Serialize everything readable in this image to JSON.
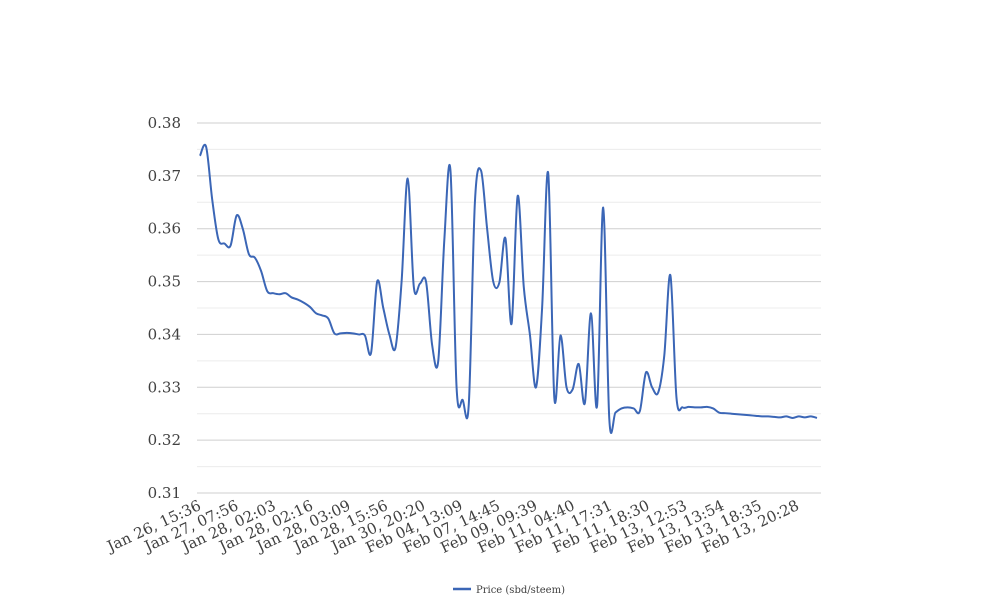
{
  "chart_data": {
    "type": "line",
    "title": "",
    "xlabel": "",
    "ylabel": "",
    "ylim": [
      0.31,
      0.38
    ],
    "yticks": [
      "0.31",
      "0.32",
      "0.33",
      "0.34",
      "0.35",
      "0.36",
      "0.37",
      "0.38"
    ],
    "minor_grid": true,
    "legend_position": "bottom",
    "x_tick_labels": [
      "Jan 26, 15:36",
      "Jan 27, 07:56",
      "Jan 28, 02:03",
      "Jan 28, 02:16",
      "Jan 28, 03:09",
      "Jan 28, 15:56",
      "Jan 30, 20:20",
      "Feb 04, 13:09",
      "Feb 07, 14:45",
      "Feb 09, 09:39",
      "Feb 11, 04:40",
      "Feb 11, 17:31",
      "Feb 11, 18:30",
      "Feb 13, 12:53",
      "Feb 13, 13:54",
      "Feb 13, 18:35",
      "Feb 13, 20:28"
    ],
    "series": [
      {
        "name": "Price (sbd/steem)",
        "color": "#3b66b6",
        "values": [
          0.3738,
          0.3755,
          0.3655,
          0.358,
          0.3572,
          0.3568,
          0.3625,
          0.36,
          0.3552,
          0.3545,
          0.352,
          0.3482,
          0.3478,
          0.3476,
          0.3478,
          0.347,
          0.3466,
          0.346,
          0.3452,
          0.344,
          0.3436,
          0.343,
          0.3402,
          0.3402,
          0.3403,
          0.3402,
          0.34,
          0.3398,
          0.3365,
          0.35,
          0.345,
          0.34,
          0.3375,
          0.35,
          0.3695,
          0.349,
          0.3496,
          0.35,
          0.338,
          0.335,
          0.358,
          0.371,
          0.33,
          0.3276,
          0.3268,
          0.365,
          0.371,
          0.36,
          0.35,
          0.3498,
          0.3582,
          0.342,
          0.3662,
          0.349,
          0.34,
          0.33,
          0.345,
          0.3705,
          0.328,
          0.3398,
          0.33,
          0.3296,
          0.3344,
          0.327,
          0.344,
          0.3265,
          0.364,
          0.324,
          0.3252,
          0.326,
          0.3262,
          0.326,
          0.3255,
          0.3328,
          0.33,
          0.329,
          0.336,
          0.3512,
          0.328,
          0.3262,
          0.3263,
          0.3262,
          0.3262,
          0.3263,
          0.326,
          0.3252,
          0.3251,
          0.325,
          0.3249,
          0.3248,
          0.3247,
          0.3246,
          0.3245,
          0.3245,
          0.3244,
          0.3243,
          0.3245,
          0.3242,
          0.3245,
          0.3243,
          0.3245,
          0.3242
        ]
      }
    ]
  }
}
